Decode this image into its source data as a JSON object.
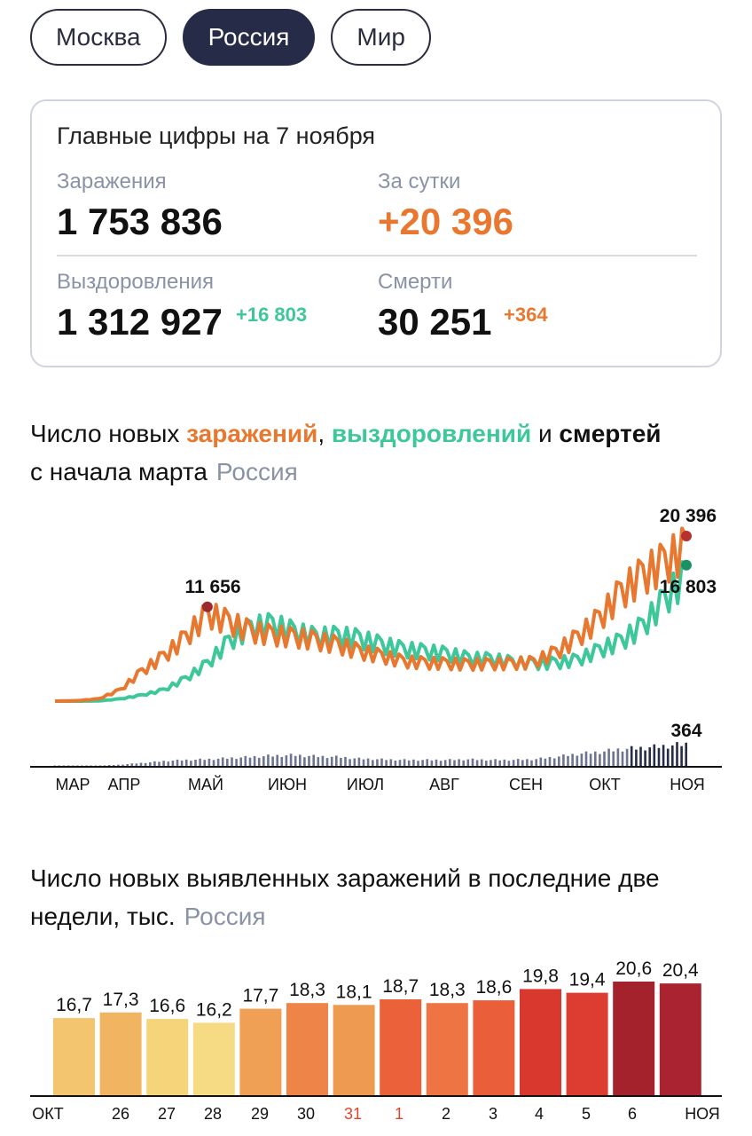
{
  "tabs": [
    {
      "label": "Москва",
      "active": false
    },
    {
      "label": "Россия",
      "active": true
    },
    {
      "label": "Мир",
      "active": false
    }
  ],
  "summary": {
    "title": "Главные цифры на 7 ноября",
    "infections_label": "Заражения",
    "infections_value": "1 753 836",
    "daily_label": "За сутки",
    "daily_value": "+20 396",
    "recoveries_label": "Выздоровления",
    "recoveries_value": "1 312 927",
    "recoveries_delta": "+16 803",
    "deaths_label": "Смерти",
    "deaths_value": "30 251",
    "deaths_delta": "+364"
  },
  "colors": {
    "infections": "#e8782f",
    "recoveries": "#3dc79a",
    "deaths": "#262b47",
    "muted": "#8a93a6"
  },
  "chart1": {
    "title_part1": "Число новых",
    "title_infections": "заражений",
    "title_comma": ",",
    "title_recoveries": "выздоровлений",
    "title_and": "и",
    "title_deaths": "смертей",
    "title_part2": "с начала марта",
    "region": "Россия"
  },
  "chart2": {
    "title": "Число новых выявленных заражений в последние две недели, тыс.",
    "region": "Россия"
  },
  "chart_data": [
    {
      "type": "line",
      "months": [
        "МАР",
        "АПР",
        "МАЙ",
        "ИЮН",
        "ИЮЛ",
        "АВГ",
        "СЕН",
        "ОКТ",
        "НОЯ"
      ],
      "series": [
        {
          "name": "заражений",
          "color": "#e8782f",
          "values": [
            0,
            50,
            300,
            1500,
            4000,
            6000,
            8500,
            11656,
            10500,
            9300,
            8800,
            8500,
            8100,
            7500,
            6600,
            6000,
            5300,
            5100,
            5000,
            4900,
            4950,
            5000,
            5200,
            6500,
            8500,
            11000,
            14500,
            16800,
            18500,
            20396
          ]
        },
        {
          "name": "выздоровлений",
          "color": "#3dc79a",
          "values": [
            0,
            0,
            30,
            300,
            800,
            1500,
            3000,
            5000,
            8000,
            9800,
            10200,
            9200,
            8500,
            8700,
            8300,
            7500,
            6900,
            6600,
            6300,
            5700,
            5600,
            5200,
            5000,
            5100,
            5500,
            6800,
            8000,
            10000,
            13500,
            16803
          ]
        },
        {
          "name": "смертей",
          "color": "#262b47",
          "values": [
            0,
            0,
            5,
            20,
            50,
            80,
            100,
            110,
            130,
            150,
            170,
            180,
            160,
            150,
            120,
            110,
            100,
            100,
            100,
            110,
            100,
            100,
            110,
            150,
            200,
            230,
            280,
            300,
            330,
            364
          ]
        }
      ],
      "annotations": [
        {
          "label": "11 656"
        },
        {
          "label": "20 396"
        },
        {
          "label": "16 803"
        },
        {
          "label": "364"
        }
      ]
    },
    {
      "type": "bar",
      "categories": [
        "ОКТ",
        "26",
        "27",
        "28",
        "29",
        "30",
        "31",
        "1",
        "2",
        "3",
        "4",
        "5",
        "6",
        "НОЯ"
      ],
      "values": [
        16.7,
        17.3,
        16.6,
        16.2,
        17.7,
        18.3,
        18.1,
        18.7,
        18.3,
        18.6,
        19.8,
        19.4,
        20.6,
        20.4
      ],
      "value_labels": [
        "16,7",
        "17,3",
        "16,6",
        "16,2",
        "17,7",
        "18,3",
        "18,1",
        "18,7",
        "18,3",
        "18,6",
        "19,8",
        "19,4",
        "20,6",
        "20,4"
      ],
      "colors": [
        "#f3c56e",
        "#f1b562",
        "#f6d57a",
        "#f7db84",
        "#f0a055",
        "#ee8447",
        "#ee9a51",
        "#ea613a",
        "#ee7543",
        "#ea5f3a",
        "#d9382f",
        "#dd3d31",
        "#a3222c",
        "#a92430"
      ],
      "highlighted_categories": [
        "31",
        "1"
      ],
      "highlight_color": "#e0452a"
    }
  ]
}
